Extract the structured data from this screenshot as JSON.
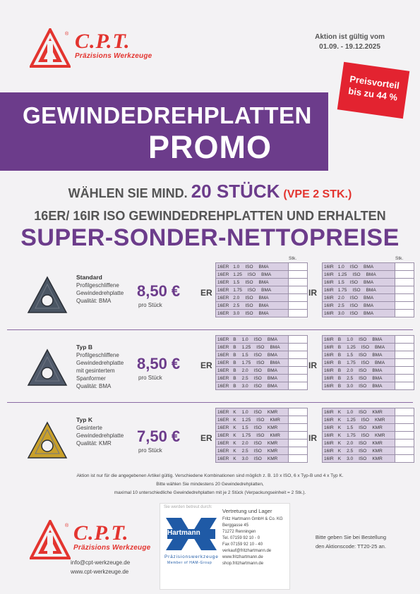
{
  "brand": {
    "name": "C.P.T.",
    "tagline": "Präzisions Werkzeuge"
  },
  "validity": {
    "line1": "Aktion ist gültig vom",
    "line2": "01.09. - 19.12.2025"
  },
  "banner": {
    "title": "GEWINDEDREHPLATTEN",
    "subtitle": "PROMO"
  },
  "tag": {
    "line1": "Preisvorteil",
    "line2": "bis zu 44 %"
  },
  "headline": {
    "pre": "WÄHLEN SIE MIND.",
    "number": "20 STÜCK",
    "vpe": "(VPE 2 STK.)",
    "line2": "16ER/ 16IR ISO GEWINDEDREHPLATTEN UND ERHALTEN",
    "line3": "SUPER-SONDER-NETTOPREISE"
  },
  "stk_label": "Stk.",
  "side_er": "ER",
  "side_ir": "IR",
  "products": [
    {
      "name": "Standard",
      "desc": [
        "Profilgeschliffene",
        "Gewindedrehplatte",
        "Qualität: BMA"
      ],
      "price": "8,50 €",
      "per": "pro Stück",
      "insert_color": "#4a5563",
      "er": [
        [
          "16ER",
          "1.0",
          "ISO",
          "BMA"
        ],
        [
          "16ER",
          "1.25",
          "ISO",
          "BMA"
        ],
        [
          "16ER",
          "1.5",
          "ISO",
          "BMA"
        ],
        [
          "16ER",
          "1.75",
          "ISO",
          "BMA"
        ],
        [
          "16ER",
          "2.0",
          "ISO",
          "BMA"
        ],
        [
          "16ER",
          "2.5",
          "ISO",
          "BMA"
        ],
        [
          "16ER",
          "3.0",
          "ISO",
          "BMA"
        ]
      ],
      "ir": [
        [
          "16IR",
          "1.0",
          "ISO",
          "BMA"
        ],
        [
          "16IR",
          "1.25",
          "ISO",
          "BMA"
        ],
        [
          "16IR",
          "1.5",
          "ISO",
          "BMA"
        ],
        [
          "16IR",
          "1.75",
          "ISO",
          "BMA"
        ],
        [
          "16IR",
          "2.0",
          "ISO",
          "BMA"
        ],
        [
          "16IR",
          "2.5",
          "ISO",
          "BMA"
        ],
        [
          "16IR",
          "3.0",
          "ISO",
          "BMA"
        ]
      ]
    },
    {
      "name": "Typ B",
      "desc": [
        "Profilgeschliffene",
        "Gewindedrehplatte",
        "mit gesintertem",
        "Spanformer",
        "Qualität: BMA"
      ],
      "price": "8,50 €",
      "per": "pro Stück",
      "insert_color": "#505a6a",
      "er": [
        [
          "16ER",
          "B",
          "1.0",
          "ISO",
          "BMA"
        ],
        [
          "16ER",
          "B",
          "1.25",
          "ISO",
          "BMA"
        ],
        [
          "16ER",
          "B",
          "1.5",
          "ISO",
          "BMA"
        ],
        [
          "16ER",
          "B",
          "1.75",
          "ISO",
          "BMA"
        ],
        [
          "16ER",
          "B",
          "2.0",
          "ISO",
          "BMA"
        ],
        [
          "16ER",
          "B",
          "2.5",
          "ISO",
          "BMA"
        ],
        [
          "16ER",
          "B",
          "3.0",
          "ISO",
          "BMA"
        ]
      ],
      "ir": [
        [
          "16IR",
          "B",
          "1.0",
          "ISO",
          "BMA"
        ],
        [
          "16IR",
          "B",
          "1.25",
          "ISO",
          "BMA"
        ],
        [
          "16IR",
          "B",
          "1.5",
          "ISO",
          "BMA"
        ],
        [
          "16IR",
          "B",
          "1.75",
          "ISO",
          "BMA"
        ],
        [
          "16IR",
          "B",
          "2.0",
          "ISO",
          "BMA"
        ],
        [
          "16IR",
          "B",
          "2.5",
          "ISO",
          "BMA"
        ],
        [
          "16IR",
          "B",
          "3.0",
          "ISO",
          "BMA"
        ]
      ]
    },
    {
      "name": "Typ K",
      "desc": [
        "Gesinterte",
        "Gewindedrehplatte",
        "Qualität: KMR"
      ],
      "price": "7,50 €",
      "per": "pro Stück",
      "insert_color": "#c9a02a",
      "er": [
        [
          "16ER",
          "K",
          "1.0",
          "ISO",
          "KMR"
        ],
        [
          "16ER",
          "K",
          "1.25",
          "ISO",
          "KMR"
        ],
        [
          "16ER",
          "K",
          "1.5",
          "ISO",
          "KMR"
        ],
        [
          "16ER",
          "K",
          "1.75",
          "ISO",
          "KMR"
        ],
        [
          "16ER",
          "K",
          "2.0",
          "ISO",
          "KMR"
        ],
        [
          "16ER",
          "K",
          "2.5",
          "ISO",
          "KMR"
        ],
        [
          "16ER",
          "K",
          "3.0",
          "ISO",
          "KMR"
        ]
      ],
      "ir": [
        [
          "16IR",
          "K",
          "1.0",
          "ISO",
          "KMR"
        ],
        [
          "16IR",
          "K",
          "1.25",
          "ISO",
          "KMR"
        ],
        [
          "16IR",
          "K",
          "1.5",
          "ISO",
          "KMR"
        ],
        [
          "16IR",
          "K",
          "1.75",
          "ISO",
          "KMR"
        ],
        [
          "16IR",
          "K",
          "2.0",
          "ISO",
          "KMR"
        ],
        [
          "16IR",
          "K",
          "2.5",
          "ISO",
          "KMR"
        ],
        [
          "16IR",
          "K",
          "3.0",
          "ISO",
          "KMR"
        ]
      ]
    }
  ],
  "notes": [
    "Aktion ist nur für die angegebenen Artikel gültig. Verschiedene Kombinationen sind möglich z. B. 10 x ISO, 6 x Typ-B und 4 x Typ K.",
    "Bitte wählen Sie mindestens 20 Gewindedrehplatten,",
    "maximal 10 unterschiedliche Gewindedrehplatten mit je 2 Stück (Verpackungseinheit = 2 Stk.)."
  ],
  "dealer": {
    "header": "Sie werden betreut durch:",
    "logo": "Hartmann",
    "logo_sub1": "Präzisionswerkzeuge",
    "logo_sub2": "Member of HAM-Group",
    "title": "Vertretung und Lager",
    "lines": [
      "Fritz Hartmann GmbH & Co. KG",
      "Berggasse 45",
      "71272 Renningen",
      "Tel. 07159 92 10 - 0",
      "Fax 07159 92 10 - 40",
      "verkauf@fritzhartmann.de",
      "www.fritzhartmann.de",
      "shop.fritzhartmann.de"
    ]
  },
  "contact": {
    "email": "info@cpt-werkzeuge.de",
    "web": "www.cpt-werkzeuge.de"
  },
  "order": {
    "line1": "Bitte geben Sie bei Bestellung",
    "line2": "den Aktionscode: TT20-25 an."
  },
  "colors": {
    "purple": "#6c3c8b",
    "red": "#e3342f"
  }
}
